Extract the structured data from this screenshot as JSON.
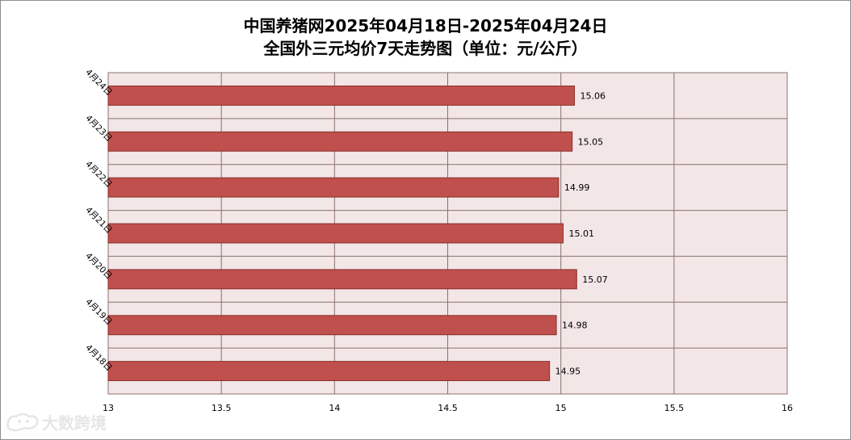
{
  "title": {
    "line1": "中国养猪网2025年04月18日-2025年04月24日",
    "line2": "全国外三元均价7天走势图（单位：元/公斤）"
  },
  "watermark": {
    "text": "大数跨境",
    "icon": "dog-logo-icon"
  },
  "chart_data": {
    "type": "bar",
    "orientation": "horizontal",
    "categories": [
      "4月18日",
      "4月19日",
      "4月20日",
      "4月21日",
      "4月22日",
      "4月23日",
      "4月24日"
    ],
    "values": [
      14.95,
      14.98,
      15.07,
      15.01,
      14.99,
      15.05,
      15.06
    ],
    "value_labels": [
      "14.95",
      "14.98",
      "15.07",
      "15.01",
      "14.99",
      "15.05",
      "15.06"
    ],
    "xlim": [
      13,
      16
    ],
    "xticks": [
      "13",
      "13.5",
      "14",
      "14.5",
      "15",
      "15.5",
      "16"
    ],
    "xtick_values": [
      13,
      13.5,
      14,
      14.5,
      15,
      15.5,
      16
    ],
    "grid": true,
    "legend": "none",
    "colors": {
      "bar": "#c0504d",
      "bar_edge": "#8b2f2c",
      "plot_bg": "#f2e6e6",
      "grid": "#8c7070"
    }
  }
}
